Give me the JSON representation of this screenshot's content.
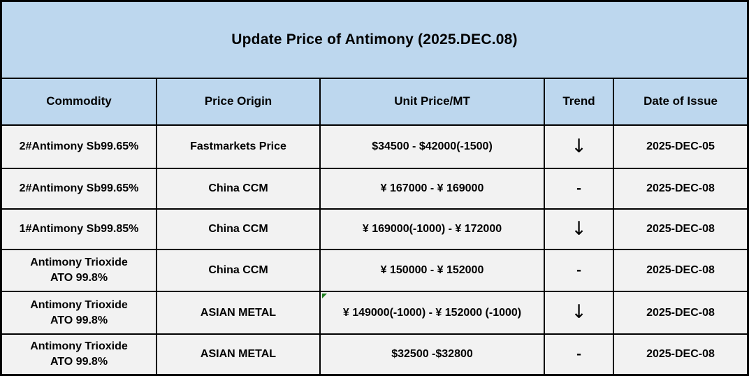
{
  "title": "Update Price of Antimony (2025.DEC.08)",
  "table": {
    "columns": [
      "Commodity",
      "Price Origin",
      "Unit Price/MT",
      "Trend",
      "Date of Issue"
    ],
    "rows": [
      {
        "commodity": "2#Antimony  Sb99.65%",
        "origin": "Fastmarkets Price",
        "price": "$34500 - $42000(-1500)",
        "trend": "↓",
        "date": "2025-DEC-05"
      },
      {
        "commodity": "2#Antimony  Sb99.65%",
        "origin": "China CCM",
        "price": "¥ 167000 - ¥ 169000",
        "trend": "-",
        "date": "2025-DEC-08"
      },
      {
        "commodity": "1#Antimony  Sb99.85%",
        "origin": "China CCM",
        "price": "¥ 169000(-1000) - ¥ 172000",
        "trend": "↓",
        "date": "2025-DEC-08"
      },
      {
        "commodity": "Antimony Trioxide\nATO 99.8%",
        "origin": "China CCM",
        "price": "¥ 150000 - ¥ 152000",
        "trend": "-",
        "date": "2025-DEC-08"
      },
      {
        "commodity": "Antimony Trioxide\nATO 99.8%",
        "origin": "ASIAN METAL",
        "price": "¥ 149000(-1000)  - ¥ 152000 (-1000)",
        "trend": "↓",
        "date": "2025-DEC-08"
      },
      {
        "commodity": "Antimony Trioxide\nATO 99.8%",
        "origin": "ASIAN METAL",
        "price": "$32500 -$32800",
        "trend": "-",
        "date": "2025-DEC-08"
      }
    ]
  },
  "icons": {
    "trend_down": "down-arrow",
    "cell_corner_marker": "green-triangle"
  },
  "colors": {
    "header_bg": "#bdd7ee",
    "row_bg": "#f2f2f2",
    "border": "#000000",
    "text": "#000000",
    "marker_green": "#1e7e1e"
  }
}
